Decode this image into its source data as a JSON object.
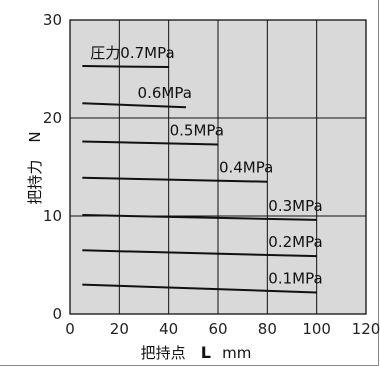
{
  "chart_data": {
    "type": "line",
    "xlabel": {
      "prefix": "把持点",
      "variable": "L",
      "unit": "mm"
    },
    "ylabel": {
      "prefix": "把持力",
      "variable": "N"
    },
    "xlim": [
      0,
      120
    ],
    "ylim": [
      0,
      30
    ],
    "xticks": [
      0,
      20,
      40,
      60,
      80,
      100,
      120
    ],
    "yticks": [
      0,
      10,
      20,
      30
    ],
    "grid": true,
    "series": [
      {
        "name": "圧力0.7MPa",
        "x": [
          5,
          40
        ],
        "y": [
          25.3,
          25.2
        ]
      },
      {
        "name": "0.6MPa",
        "x": [
          5,
          47
        ],
        "y": [
          21.5,
          21.1
        ]
      },
      {
        "name": "0.5MPa",
        "x": [
          5,
          60
        ],
        "y": [
          17.6,
          17.3
        ]
      },
      {
        "name": "0.4MPa",
        "x": [
          5,
          80
        ],
        "y": [
          13.9,
          13.5
        ]
      },
      {
        "name": "0.3MPa",
        "x": [
          5,
          100
        ],
        "y": [
          10.1,
          9.6
        ]
      },
      {
        "name": "0.2MPa",
        "x": [
          5,
          100
        ],
        "y": [
          6.5,
          5.9
        ]
      },
      {
        "name": "0.1MPa",
        "x": [
          5,
          100
        ],
        "y": [
          3.0,
          2.2
        ]
      }
    ]
  }
}
